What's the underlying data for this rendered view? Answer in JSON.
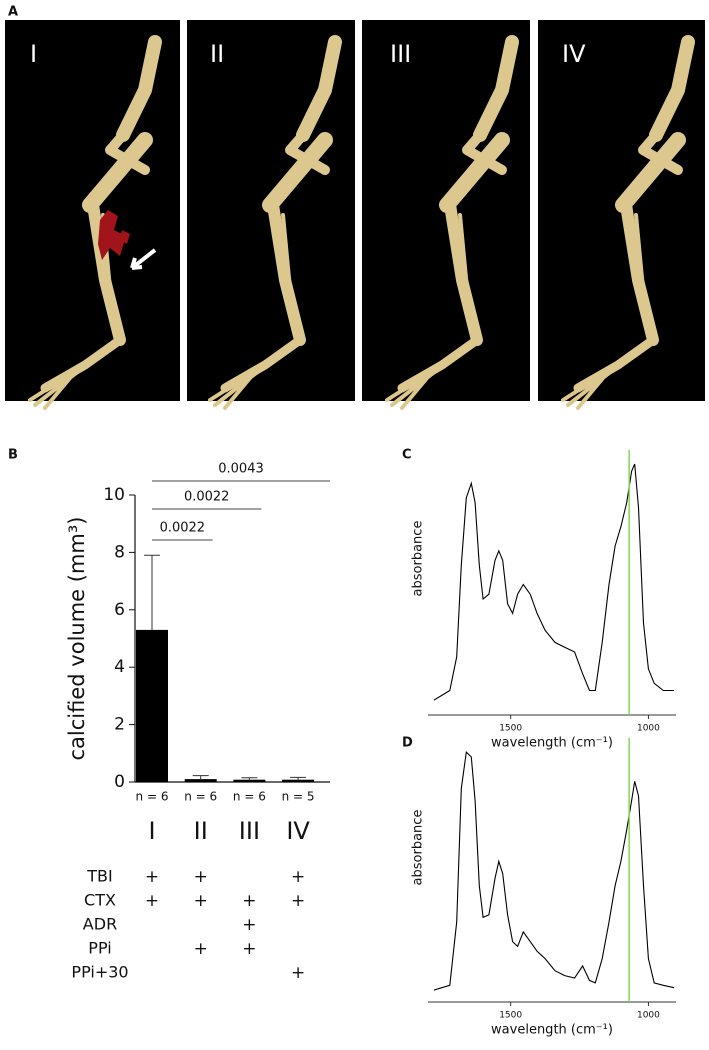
{
  "panel_a": {
    "panel_label": "A",
    "labels": [
      "I",
      "II",
      "III",
      "IV"
    ]
  },
  "chart_data": [
    {
      "type": "bar",
      "panel_label": "B",
      "y_label": "calcified volume (mm³)",
      "categories": [
        "I",
        "II",
        "III",
        "IV"
      ],
      "values": [
        5.3,
        0.1,
        0.08,
        0.08
      ],
      "errors": [
        2.6,
        0.12,
        0.07,
        0.08
      ],
      "n_labels": [
        "n = 6",
        "n = 6",
        "n = 6",
        "n = 5"
      ],
      "color": "#000000",
      "ylim": [
        0,
        10
      ],
      "yticks": [
        0,
        2,
        4,
        6,
        8,
        10
      ],
      "comparisons": [
        {
          "label": "0.0022",
          "between": [
            "I",
            "II"
          ]
        },
        {
          "label": "0.0022",
          "between": [
            "I",
            "III"
          ]
        },
        {
          "label": "0.0043",
          "between": [
            "I",
            "IV"
          ]
        }
      ]
    },
    {
      "type": "line",
      "panel_label": "C",
      "y_label": "absorbance",
      "x_label": "wavelength (cm⁻¹)",
      "color": "#000000",
      "marker_x": 1070,
      "marker_color": "#7ed957",
      "x": [
        1779,
        1750,
        1721,
        1696,
        1679,
        1661,
        1643,
        1629,
        1614,
        1600,
        1579,
        1557,
        1543,
        1529,
        1511,
        1493,
        1475,
        1454,
        1429,
        1404,
        1375,
        1339,
        1304,
        1268,
        1239,
        1214,
        1193,
        1168,
        1143,
        1121,
        1100,
        1079,
        1061,
        1050,
        1036,
        1018,
        1000,
        979,
        946,
        907
      ],
      "values": [
        0.02,
        0.04,
        0.06,
        0.2,
        0.58,
        0.86,
        0.92,
        0.84,
        0.58,
        0.44,
        0.46,
        0.6,
        0.64,
        0.6,
        0.42,
        0.38,
        0.46,
        0.5,
        0.46,
        0.38,
        0.31,
        0.26,
        0.24,
        0.22,
        0.13,
        0.06,
        0.06,
        0.26,
        0.5,
        0.66,
        0.74,
        0.84,
        0.97,
        1.0,
        0.82,
        0.34,
        0.15,
        0.09,
        0.06,
        0.06
      ],
      "xlim": [
        1800,
        900
      ],
      "xticks": [
        1500,
        1000
      ],
      "ylim": [
        0,
        1.05
      ]
    },
    {
      "type": "line",
      "panel_label": "D",
      "y_label": "absorbance",
      "x_label": "wavelength (cm⁻¹)",
      "color": "#000000",
      "marker_x": 1070,
      "marker_color": "#7ed957",
      "x": [
        1779,
        1750,
        1721,
        1696,
        1679,
        1661,
        1643,
        1629,
        1614,
        1600,
        1579,
        1557,
        1543,
        1529,
        1511,
        1493,
        1475,
        1454,
        1429,
        1404,
        1375,
        1339,
        1304,
        1268,
        1239,
        1214,
        1193,
        1168,
        1143,
        1121,
        1100,
        1079,
        1061,
        1050,
        1036,
        1018,
        1000,
        979,
        946,
        907
      ],
      "values": [
        0.02,
        0.03,
        0.04,
        0.3,
        0.85,
        1.0,
        0.98,
        0.8,
        0.45,
        0.32,
        0.33,
        0.48,
        0.55,
        0.5,
        0.33,
        0.22,
        0.2,
        0.26,
        0.22,
        0.18,
        0.15,
        0.1,
        0.08,
        0.07,
        0.12,
        0.06,
        0.05,
        0.15,
        0.3,
        0.45,
        0.55,
        0.68,
        0.8,
        0.88,
        0.82,
        0.45,
        0.15,
        0.05,
        0.04,
        0.03
      ],
      "xlim": [
        1800,
        900
      ],
      "xticks": [
        1500,
        1000
      ],
      "ylim": [
        0,
        1.05
      ]
    }
  ],
  "treatment_table": {
    "rows": [
      {
        "label": "TBI",
        "marks": [
          "+",
          "+",
          null,
          "+"
        ]
      },
      {
        "label": "CTX",
        "marks": [
          "+",
          "+",
          "+",
          "+"
        ]
      },
      {
        "label": "ADR",
        "marks": [
          null,
          null,
          "+",
          null
        ]
      },
      {
        "label": "PPi",
        "marks": [
          null,
          "+",
          "+",
          null
        ]
      },
      {
        "label": "PPi+30",
        "marks": [
          null,
          null,
          null,
          "+"
        ]
      }
    ]
  }
}
